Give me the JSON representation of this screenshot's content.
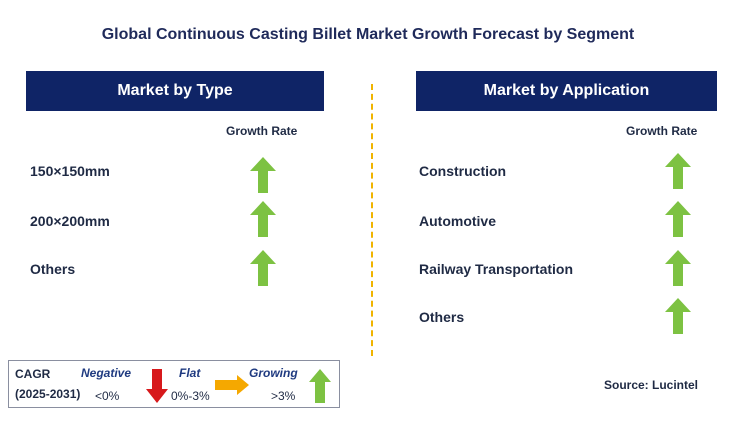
{
  "title": "Global Continuous Casting Billet Market Growth Forecast by Segment",
  "left": {
    "header": "Market by Type",
    "growth_label": "Growth Rate",
    "rows": [
      {
        "label": "150×150mm",
        "trend": "growing"
      },
      {
        "label": "200×200mm",
        "trend": "growing"
      },
      {
        "label": "Others",
        "trend": "growing"
      }
    ]
  },
  "right": {
    "header": "Market by Application",
    "growth_label": "Growth Rate",
    "rows": [
      {
        "label": "Construction",
        "trend": "growing"
      },
      {
        "label": "Automotive",
        "trend": "growing"
      },
      {
        "label": "Railway Transportation",
        "trend": "growing"
      },
      {
        "label": "Others",
        "trend": "growing"
      }
    ]
  },
  "legend": {
    "cagr": "CAGR",
    "period": "(2025-2031)",
    "negative": "Negative",
    "negative_range": "<0%",
    "flat": "Flat",
    "flat_range": "0%-3%",
    "growing": "Growing",
    "growing_range": ">3%"
  },
  "source": "Source: Lucintel",
  "colors": {
    "header_bg": "#0f2466",
    "growing": "#7dc242",
    "negative": "#d7191c",
    "flat": "#f5a800",
    "divider": "#f0b400"
  },
  "icons": {
    "growing": "green-up-arrow-icon",
    "negative": "red-down-arrow-icon",
    "flat": "orange-right-arrow-icon"
  }
}
